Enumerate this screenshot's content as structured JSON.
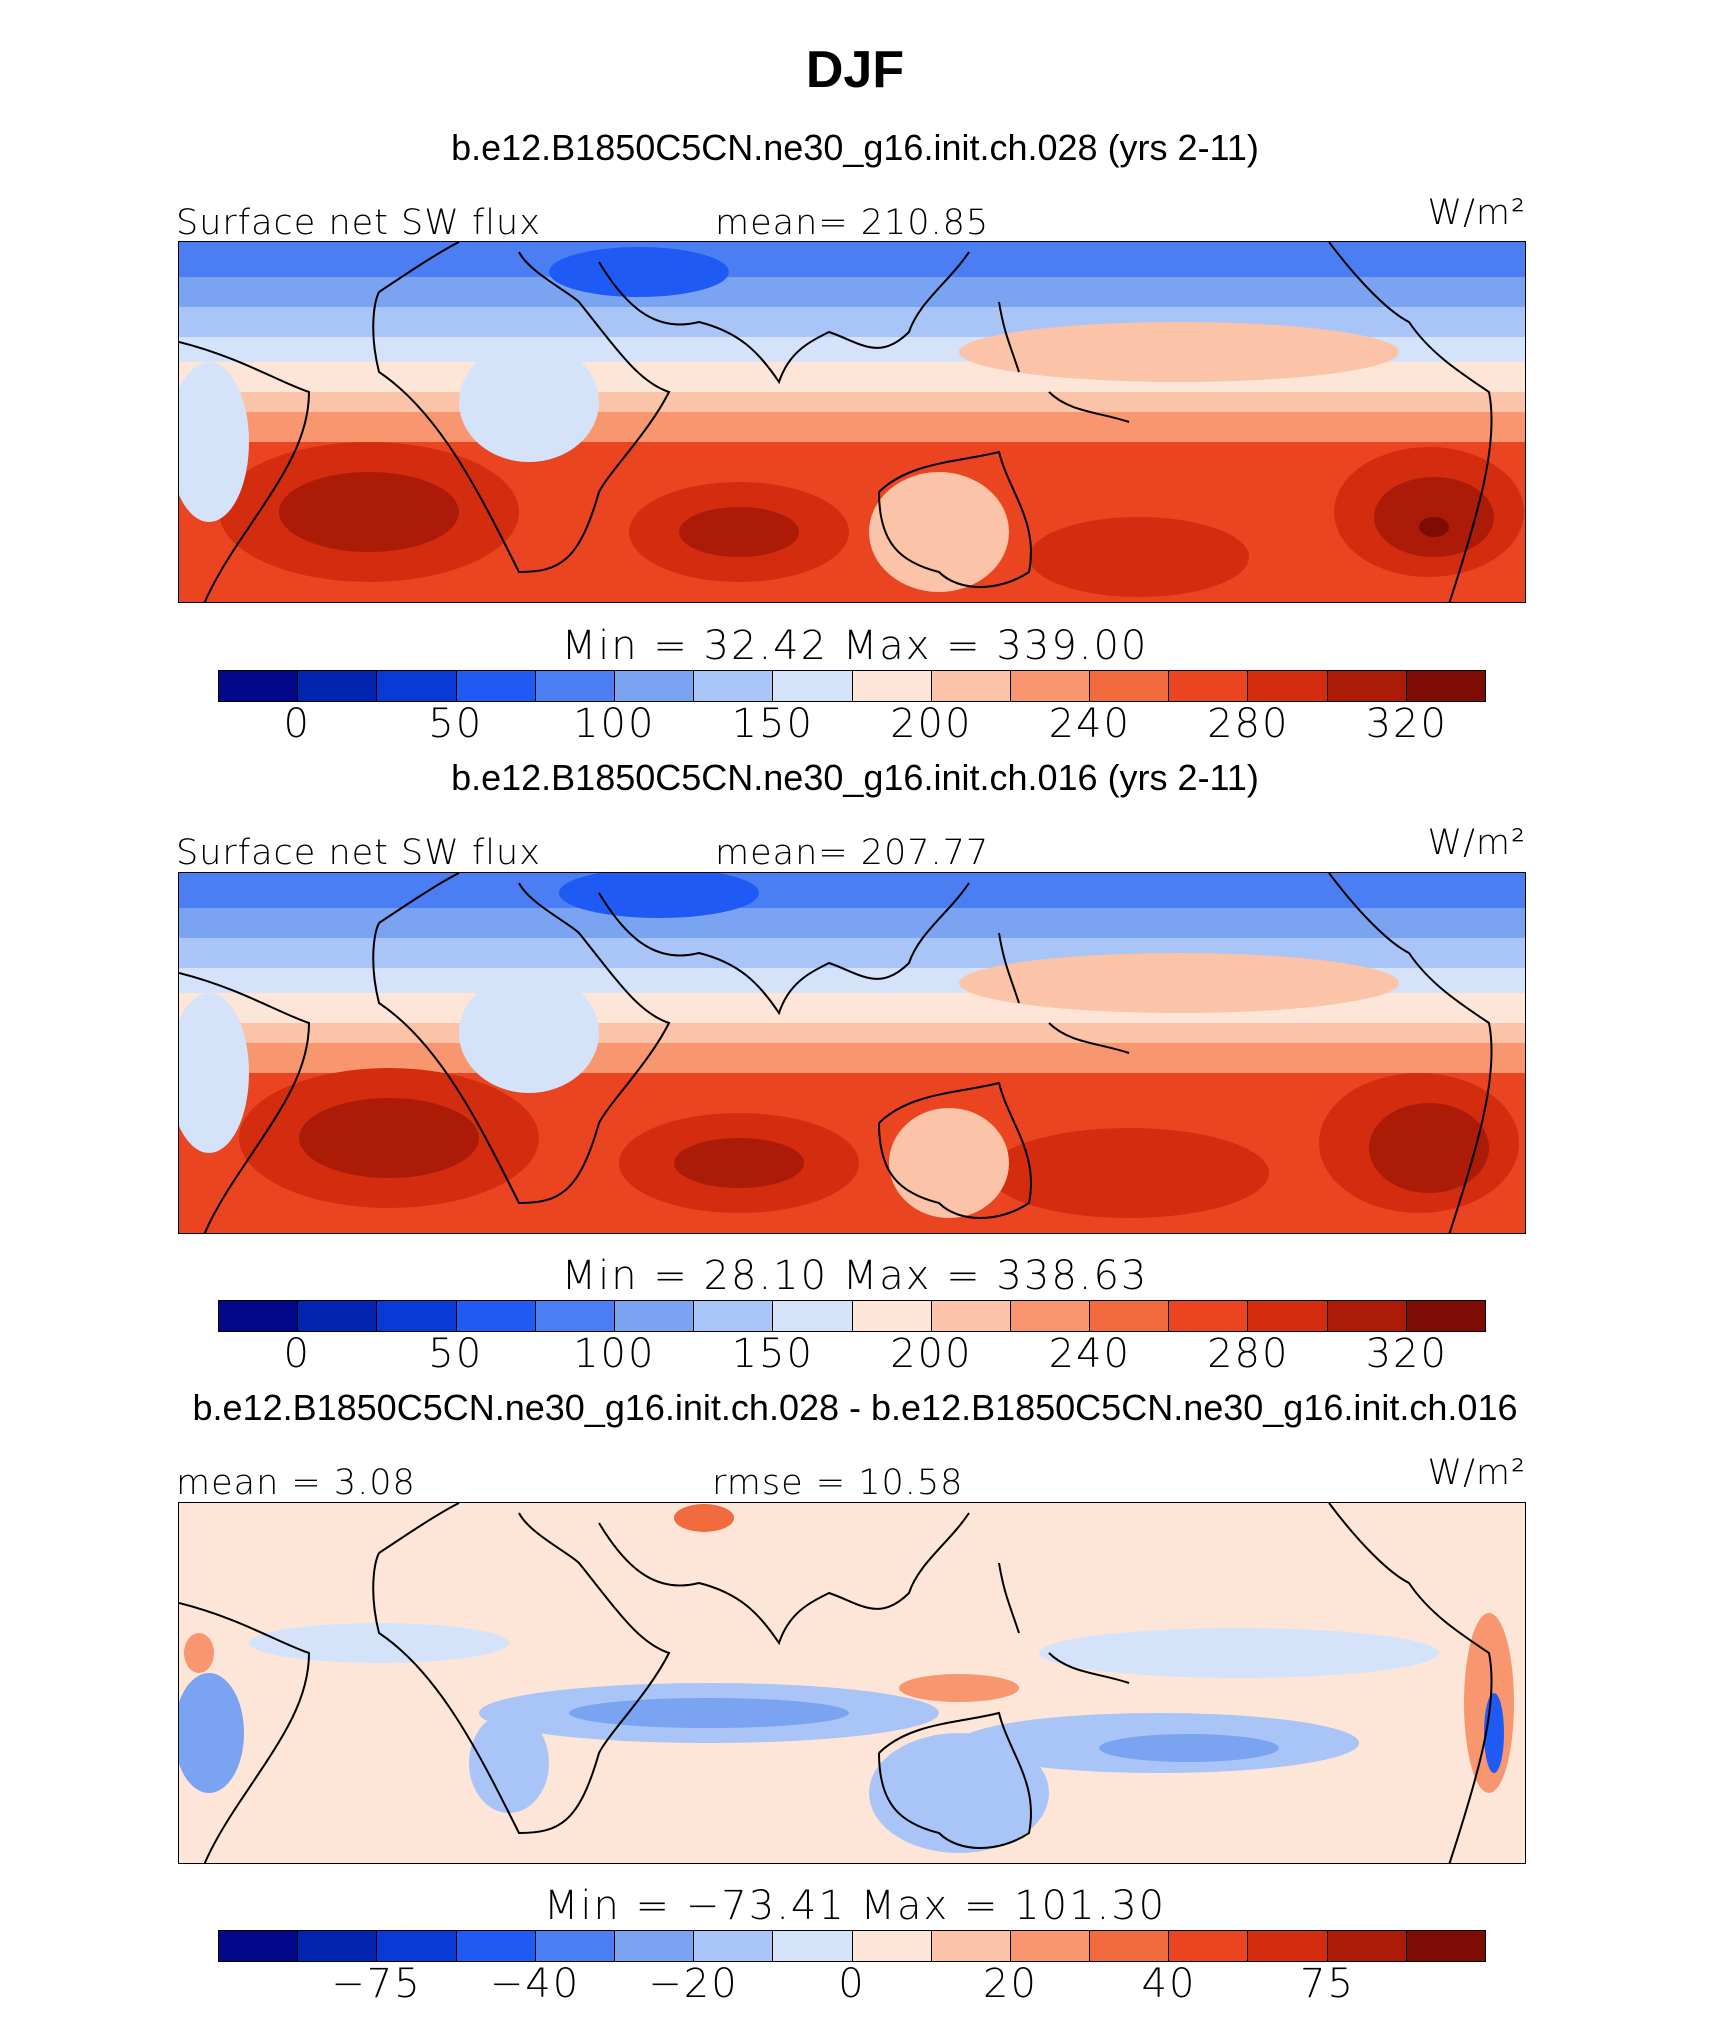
{
  "title": "DJF",
  "colorbar_colors": [
    "#03078a",
    "#0225b0",
    "#0a3ad6",
    "#1f5af5",
    "#4a7ef2",
    "#7aa3f2",
    "#a9c4f6",
    "#d5e3fa",
    "#fde6d8",
    "#fbc3a8",
    "#f8976f",
    "#f26b3f",
    "#ea4520",
    "#d32c0f",
    "#ac1b08",
    "#7e0c05"
  ],
  "panels": [
    {
      "subtitle": "b.e12.B1850C5CN.ne30_g16.init.ch.028 (yrs 2-11)",
      "left_label": "Surface net SW flux",
      "center_label": "mean= 210.85",
      "units": "W/m²",
      "minmax": "Min  =   32.42  Max  =  339.00",
      "colorbar_ticks": [
        "0",
        "50",
        "100",
        "150",
        "200",
        "240",
        "280",
        "320"
      ]
    },
    {
      "subtitle": "b.e12.B1850C5CN.ne30_g16.init.ch.016 (yrs 2-11)",
      "left_label": "Surface net SW flux",
      "center_label": "mean= 207.77",
      "units": "W/m²",
      "minmax": "Min  =   28.10  Max  =  338.63",
      "colorbar_ticks": [
        "0",
        "50",
        "100",
        "150",
        "200",
        "240",
        "280",
        "320"
      ]
    },
    {
      "subtitle": "b.e12.B1850C5CN.ne30_g16.init.ch.028 - b.e12.B1850C5CN.ne30_g16.init.ch.016",
      "left_label": "mean =    3.08",
      "center_label": "rmse =   10.58",
      "units": "W/m²",
      "minmax": "Min  =  −73.41  Max  =  101.30",
      "colorbar_ticks": [
        "−75",
        "−40",
        "−20",
        "0",
        "20",
        "40",
        "75"
      ]
    }
  ]
}
